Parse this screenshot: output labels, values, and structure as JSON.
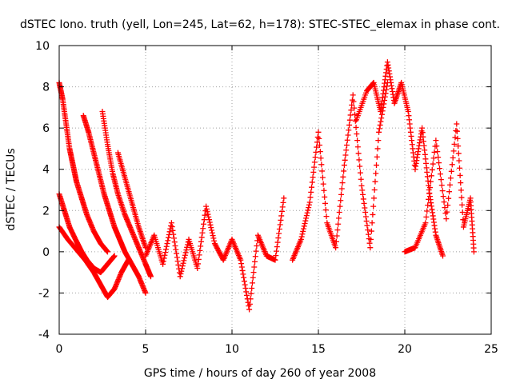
{
  "chart_data": {
    "type": "scatter",
    "title": "dSTEC Iono. truth (yell, Lon=245, Lat=62, h=178): STEC-STEC_elemax in phase cont.",
    "xlabel": "GPS time / hours of day 260 of year 2008",
    "ylabel": "dSTEC  / TECUs",
    "xlim": [
      0,
      25
    ],
    "ylim": [
      -4,
      10
    ],
    "xticks": [
      0,
      5,
      10,
      15,
      20,
      25
    ],
    "yticks": [
      -4,
      -2,
      0,
      2,
      4,
      6,
      8,
      10
    ],
    "grid": true,
    "legend": "none",
    "marker": "+",
    "color": "#ff0000",
    "series": [
      {
        "x": [
          0.0,
          0.5,
          1.0,
          1.5,
          2.0,
          2.4,
          2.8,
          3.2,
          3.6,
          4.0
        ],
        "y": [
          1.2,
          0.6,
          0.1,
          -0.4,
          -1.0,
          -1.6,
          -2.2,
          -1.8,
          -1.0,
          -0.4
        ]
      },
      {
        "x": [
          0.0,
          0.3,
          0.6,
          1.0,
          1.3,
          1.6,
          2.0,
          2.4,
          2.8,
          3.2
        ],
        "y": [
          2.8,
          2.0,
          1.2,
          0.5,
          0.0,
          -0.4,
          -0.8,
          -1.0,
          -0.6,
          -0.2
        ]
      },
      {
        "x": [
          0.0,
          0.2,
          0.4,
          0.6,
          0.8,
          1.0,
          1.3,
          1.6,
          2.0,
          2.4,
          2.8
        ],
        "y": [
          8.2,
          7.4,
          6.2,
          5.0,
          4.2,
          3.4,
          2.6,
          1.8,
          1.0,
          0.4,
          0.0
        ]
      },
      {
        "x": [
          1.4,
          1.7,
          2.0,
          2.3,
          2.6,
          2.9,
          3.2,
          3.5,
          3.8,
          4.2,
          4.6,
          5.0
        ],
        "y": [
          6.6,
          5.8,
          4.8,
          3.8,
          2.8,
          2.0,
          1.2,
          0.6,
          0.0,
          -0.6,
          -1.2,
          -2.0
        ]
      },
      {
        "x": [
          2.5,
          2.8,
          3.1,
          3.4,
          3.8,
          4.2,
          4.6,
          5.0,
          5.3
        ],
        "y": [
          6.8,
          5.2,
          3.8,
          2.8,
          1.8,
          1.0,
          0.2,
          -0.6,
          -1.2
        ]
      },
      {
        "x": [
          3.4,
          3.8,
          4.2,
          4.6,
          5.0
        ],
        "y": [
          4.8,
          3.6,
          2.4,
          1.2,
          0.2
        ]
      },
      {
        "x": [
          5.0,
          5.5,
          6.0,
          6.5,
          7.0,
          7.5,
          8.0,
          8.5,
          9.0,
          9.5,
          10.0,
          10.5,
          11.0,
          11.5,
          12.0,
          12.5,
          13.0
        ],
        "y": [
          -0.2,
          0.8,
          -0.6,
          1.4,
          -1.2,
          0.6,
          -0.8,
          2.2,
          0.4,
          -0.4,
          0.6,
          -0.4,
          -2.8,
          0.8,
          -0.2,
          -0.4,
          2.6
        ]
      },
      {
        "x": [
          13.5,
          14.0,
          14.5,
          15.0,
          15.5,
          16.0,
          16.5,
          17.0,
          17.5,
          18.0,
          18.5,
          19.0
        ],
        "y": [
          -0.4,
          0.6,
          2.4,
          5.8,
          1.4,
          0.2,
          4.2,
          7.6,
          3.2,
          0.2,
          5.8,
          8.2
        ]
      },
      {
        "x": [
          17.2,
          17.8,
          18.2,
          18.6,
          19.0,
          19.4,
          19.8,
          20.2,
          20.6,
          21.0,
          21.4,
          21.8,
          22.2
        ],
        "y": [
          6.4,
          7.8,
          8.2,
          6.8,
          9.2,
          7.2,
          8.2,
          6.8,
          4.0,
          6.0,
          3.0,
          0.8,
          -0.2
        ]
      },
      {
        "x": [
          20.0,
          20.6,
          21.2,
          21.8,
          22.4,
          23.0,
          23.4,
          23.8,
          24.0
        ],
        "y": [
          0.0,
          0.2,
          1.4,
          5.4,
          1.6,
          6.2,
          1.2,
          2.6,
          0.0
        ]
      }
    ]
  }
}
